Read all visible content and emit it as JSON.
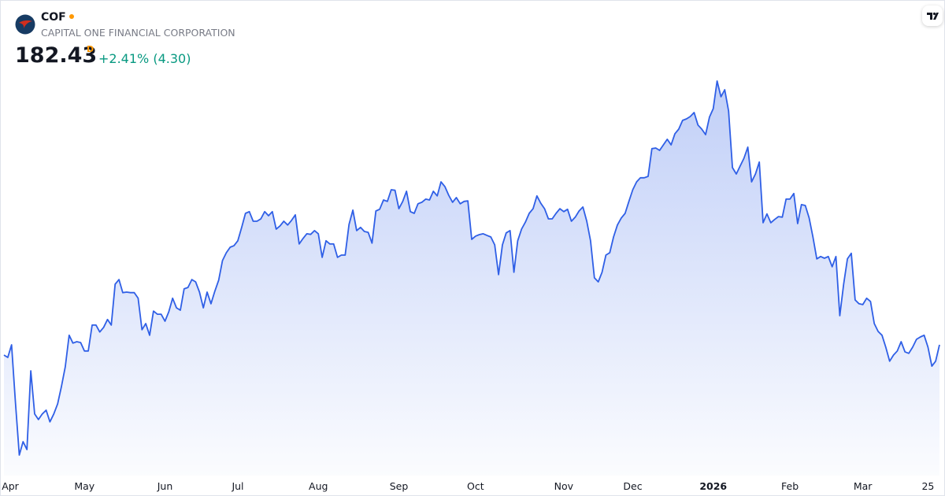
{
  "header": {
    "symbol": "COF",
    "name": "CAPITAL ONE FINANCIAL CORPORATION",
    "price": 182.43,
    "interval": "D",
    "change": "+2.41% (4.30)"
  },
  "chart_data": {
    "type": "area",
    "color": "#2f5fe6",
    "values": [
      178.9,
      178.1,
      182.4,
      162.7,
      144.6,
      149.2,
      146.5,
      173.5,
      158.7,
      156.8,
      158.7,
      160.0,
      156.0,
      158.7,
      162.2,
      168.1,
      174.9,
      185.7,
      183.0,
      183.5,
      183.2,
      180.3,
      180.3,
      189.2,
      189.2,
      186.8,
      188.4,
      191.1,
      189.2,
      203.2,
      204.8,
      200.3,
      200.5,
      200.3,
      200.3,
      198.4,
      187.6,
      189.7,
      185.7,
      194.0,
      192.9,
      192.9,
      190.5,
      193.8,
      198.4,
      195.1,
      194.3,
      201.6,
      202.1,
      204.8,
      204.0,
      200.5,
      195.1,
      200.5,
      196.5,
      200.8,
      204.6,
      211.3,
      214.0,
      215.9,
      216.4,
      218.1,
      222.7,
      227.5,
      228.1,
      224.8,
      224.8,
      225.6,
      228.1,
      226.7,
      228.1,
      222.1,
      223.2,
      224.8,
      223.5,
      225.1,
      227.0,
      217.0,
      218.9,
      220.5,
      220.3,
      221.6,
      220.5,
      212.4,
      218.1,
      217.0,
      217.0,
      212.4,
      213.2,
      213.2,
      223.7,
      228.6,
      221.6,
      222.7,
      221.3,
      221.0,
      217.3,
      228.3,
      228.9,
      232.1,
      231.6,
      235.6,
      235.4,
      229.1,
      231.6,
      235.1,
      228.1,
      227.5,
      230.8,
      231.3,
      232.4,
      232.1,
      235.1,
      233.5,
      238.3,
      236.7,
      233.7,
      231.3,
      232.9,
      230.8,
      231.6,
      231.8,
      218.6,
      219.7,
      220.2,
      220.5,
      219.9,
      219.4,
      216.7,
      206.5,
      216.7,
      220.8,
      221.6,
      207.3,
      218.1,
      222.1,
      224.5,
      227.5,
      229.1,
      233.5,
      231.0,
      229.1,
      225.6,
      225.6,
      227.5,
      229.1,
      228.1,
      228.9,
      224.8,
      226.2,
      228.3,
      229.7,
      224.8,
      218.1,
      205.4,
      204.0,
      207.3,
      213.2,
      214.0,
      219.4,
      223.5,
      225.9,
      227.5,
      231.6,
      235.6,
      238.3,
      239.7,
      239.7,
      240.2,
      249.7,
      249.9,
      249.1,
      251.0,
      252.9,
      251.0,
      254.8,
      256.4,
      259.4,
      259.9,
      260.7,
      262.1,
      257.8,
      256.4,
      254.5,
      260.5,
      263.4,
      272.9,
      267.5,
      269.9,
      262.6,
      243.2,
      241.0,
      243.7,
      246.4,
      250.2,
      238.3,
      241.0,
      245.1,
      224.3,
      227.3,
      224.3,
      225.4,
      226.4,
      226.2,
      232.4,
      232.4,
      234.3,
      224.0,
      230.5,
      230.2,
      225.9,
      219.4,
      211.9,
      212.7,
      212.1,
      212.7,
      209.2,
      212.7,
      192.4,
      203.2,
      211.9,
      213.8,
      197.8,
      196.5,
      196.2,
      198.4,
      197.3,
      189.7,
      187.0,
      185.7,
      181.6,
      176.8,
      178.9,
      180.3,
      183.5,
      180.0,
      179.5,
      181.6,
      184.3,
      185.1,
      185.7,
      181.6,
      175.1,
      176.8,
      182.43
    ],
    "xlim": [
      0,
      244
    ],
    "xticks": [
      {
        "value": 1,
        "label": "Apr"
      },
      {
        "value": 21,
        "label": "May"
      },
      {
        "value": 42,
        "label": "Jun"
      },
      {
        "value": 61,
        "label": "Jul"
      },
      {
        "value": 82,
        "label": "Aug"
      },
      {
        "value": 103,
        "label": "Sep"
      },
      {
        "value": 123,
        "label": "Oct"
      },
      {
        "value": 146,
        "label": "Nov"
      },
      {
        "value": 164,
        "label": "Dec"
      },
      {
        "value": 185,
        "label": "2026"
      },
      {
        "value": 205,
        "label": "Feb"
      },
      {
        "value": 224,
        "label": "Mar"
      },
      {
        "value": 241,
        "label": "25"
      }
    ],
    "ylim": [
      138.4,
      278.8
    ]
  }
}
